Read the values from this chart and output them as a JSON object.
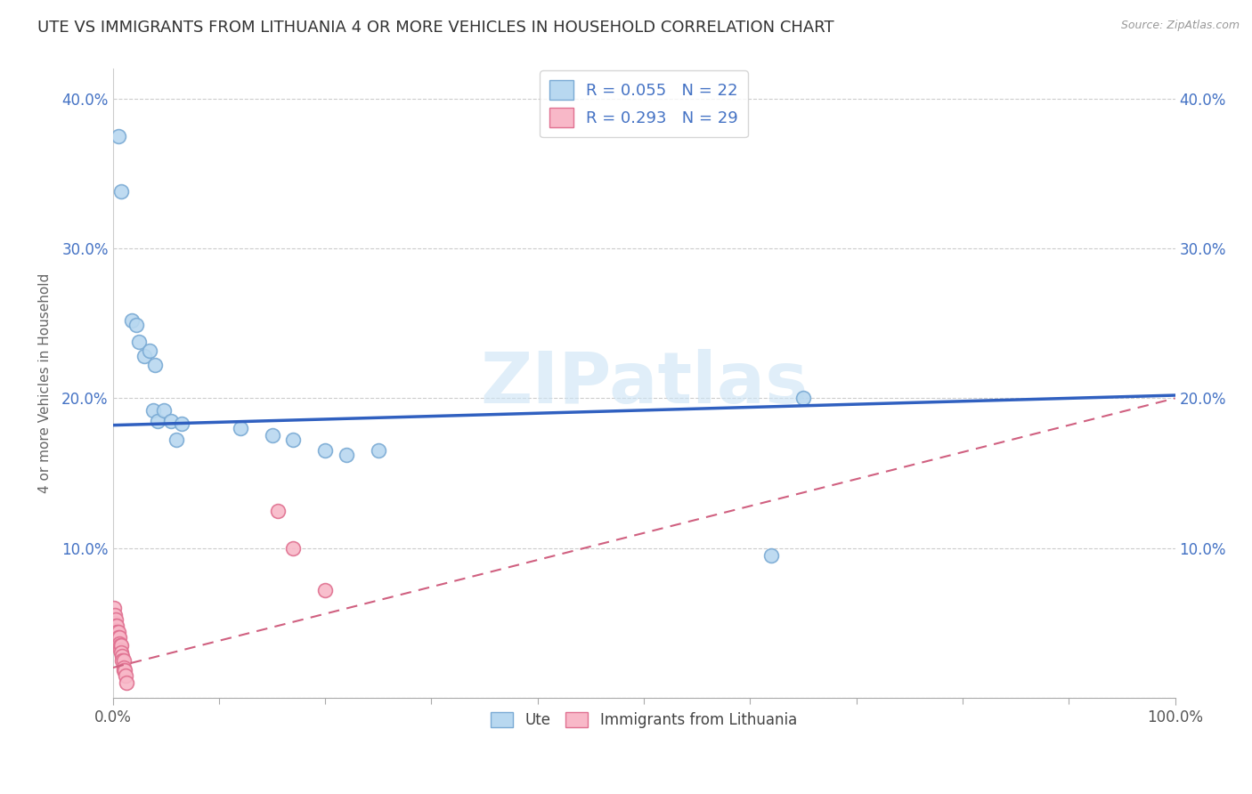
{
  "title": "UTE VS IMMIGRANTS FROM LITHUANIA 4 OR MORE VEHICLES IN HOUSEHOLD CORRELATION CHART",
  "source": "Source: ZipAtlas.com",
  "ylabel": "4 or more Vehicles in Household",
  "legend_labels": [
    "Ute",
    "Immigrants from Lithuania"
  ],
  "series_ute": {
    "label": "Ute",
    "color": "#b8d8f0",
    "border_color": "#7aaad4",
    "R": 0.055,
    "N": 22,
    "x": [
      0.005,
      0.008,
      0.018,
      0.022,
      0.025,
      0.03,
      0.035,
      0.038,
      0.04,
      0.042,
      0.048,
      0.055,
      0.06,
      0.065,
      0.12,
      0.15,
      0.17,
      0.2,
      0.22,
      0.25,
      0.62,
      0.65
    ],
    "y": [
      0.375,
      0.338,
      0.252,
      0.249,
      0.238,
      0.228,
      0.232,
      0.192,
      0.222,
      0.185,
      0.192,
      0.185,
      0.172,
      0.183,
      0.18,
      0.175,
      0.172,
      0.165,
      0.162,
      0.165,
      0.095,
      0.2
    ]
  },
  "series_lithuania": {
    "label": "Immigrants from Lithuania",
    "color": "#f8b8c8",
    "border_color": "#e07090",
    "R": 0.293,
    "N": 29,
    "x": [
      0.001,
      0.002,
      0.002,
      0.003,
      0.003,
      0.003,
      0.004,
      0.004,
      0.004,
      0.005,
      0.005,
      0.005,
      0.006,
      0.006,
      0.007,
      0.007,
      0.008,
      0.008,
      0.009,
      0.009,
      0.01,
      0.01,
      0.01,
      0.011,
      0.012,
      0.013,
      0.155,
      0.17,
      0.2
    ],
    "y": [
      0.06,
      0.055,
      0.05,
      0.052,
      0.048,
      0.045,
      0.048,
      0.044,
      0.04,
      0.044,
      0.04,
      0.036,
      0.04,
      0.036,
      0.035,
      0.032,
      0.035,
      0.03,
      0.028,
      0.025,
      0.025,
      0.02,
      0.018,
      0.018,
      0.015,
      0.01,
      0.125,
      0.1,
      0.072
    ]
  },
  "xlim": [
    0.0,
    1.0
  ],
  "ylim": [
    0.0,
    0.42
  ],
  "ytick_positions": [
    0.0,
    0.1,
    0.2,
    0.3,
    0.4
  ],
  "ytick_labels": [
    "",
    "10.0%",
    "20.0%",
    "30.0%",
    "40.0%"
  ],
  "xtick_positions": [
    0.0,
    1.0
  ],
  "xtick_labels": [
    "0.0%",
    "100.0%"
  ],
  "minor_xtick_count": 9,
  "grid_color": "#cccccc",
  "background_color": "#ffffff",
  "watermark": "ZIPatlas",
  "trend_ute_color": "#3060c0",
  "trend_lithuania_color": "#d06080",
  "trend_ute_linestyle": "solid",
  "trend_lit_linestyle": "dashed",
  "marker_size": 130,
  "title_fontsize": 13,
  "axis_fontsize": 11,
  "tick_fontsize": 12
}
